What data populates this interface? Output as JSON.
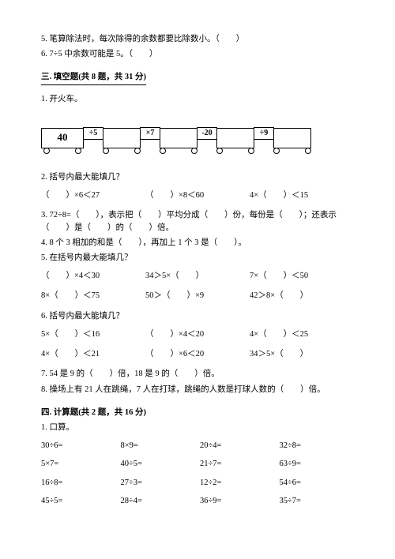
{
  "prelim": {
    "q5": "5. 笔算除法时，每次除得的余数都要比除数小。（　　）",
    "q6": "6. 7÷5 中余数可能是 5。（　　）"
  },
  "section3": {
    "head": "三. 填空题(共 8 题，共 31 分)",
    "q1_title": "1. 开火车。",
    "train": {
      "start": "40",
      "ops": [
        "÷5",
        "×7",
        "-20",
        "÷9"
      ]
    },
    "q2_title": "2. 括号内最大能填几？",
    "q2_items": [
      "（　　）×6＜27",
      "（　　）×8＜60",
      "4×（　　）＜15"
    ],
    "q3": "3. 72÷8=（　　），表示把（　　）平均分成（　　）份，每份是（　　）；还表示（　　）是（　　）的（　　）倍。",
    "q4": "4. 8 个 3 相加的和是（　　），再加上 1 个 3 是（　　）。",
    "q5_title": "5. 在括号内最大能填几？",
    "q5_row1": [
      "（　　）×4＜30",
      "34＞5×（　　）",
      "7×（　　）＜50"
    ],
    "q5_row2": [
      "8×（　　）＜75",
      "50＞（　　）×9",
      "42＞8×（　　）"
    ],
    "q6_title": "6. 括号内最大能填几？",
    "q6_row1": [
      "5×（　　）＜16",
      "（　　）×4＜20",
      "4×（　　）＜25"
    ],
    "q6_row2": [
      "4×（　　）＜21",
      "（　　）×6＜20",
      "34＞5×（　　）"
    ],
    "q7": "7. 54 是 9 的（　　）倍，18 是 9 的（　　）倍。",
    "q8": "8. 操场上有 21 人在跳绳，7 人在打球，跳绳的人数是打球人数的（　　）倍。"
  },
  "section4": {
    "head": "四. 计算题(共 2 题，共 16 分)",
    "q1_title": "1. 口算。",
    "rows": [
      [
        "30÷6=",
        "8×9=",
        "20÷4=",
        "32÷8="
      ],
      [
        "5×7=",
        "40÷5=",
        "21÷7=",
        "63÷9="
      ],
      [
        "16÷8=",
        "27÷3=",
        "12÷2=",
        "54÷6="
      ],
      [
        "45÷5=",
        "28÷4=",
        "36÷9=",
        "35÷7="
      ]
    ]
  },
  "colors": {
    "text": "#000000",
    "bg": "#ffffff"
  }
}
